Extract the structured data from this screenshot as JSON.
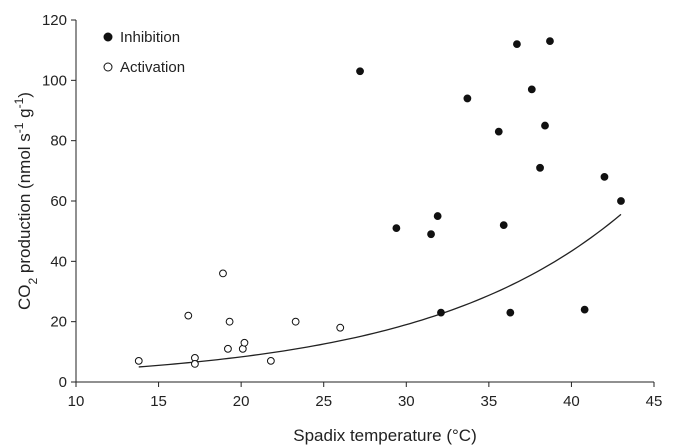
{
  "chart_data": {
    "type": "scatter",
    "xlabel": "Spadix temperature  (°C)",
    "ylabel_parts": {
      "pre": "CO",
      "sub": "2",
      "mid": " production  (nmol s",
      "sup1": "-1",
      "mid2": " g",
      "sup2": "-1",
      "post": ")"
    },
    "xlim": [
      10,
      45
    ],
    "ylim": [
      0,
      120
    ],
    "xticks": [
      10,
      15,
      20,
      25,
      30,
      35,
      40,
      45
    ],
    "yticks": [
      0,
      20,
      40,
      60,
      80,
      100,
      120
    ],
    "grid": false,
    "legend_position": "top-left",
    "series": [
      {
        "name": "Inhibition",
        "marker": "filled-circle",
        "points": [
          [
            27.2,
            103
          ],
          [
            29.4,
            51
          ],
          [
            31.5,
            49
          ],
          [
            31.9,
            55
          ],
          [
            32.1,
            23
          ],
          [
            33.7,
            94
          ],
          [
            35.6,
            83
          ],
          [
            35.9,
            52
          ],
          [
            36.3,
            23
          ],
          [
            36.7,
            112
          ],
          [
            37.6,
            97
          ],
          [
            38.1,
            71
          ],
          [
            38.4,
            85
          ],
          [
            38.7,
            113
          ],
          [
            40.8,
            24
          ],
          [
            42.0,
            68
          ],
          [
            43.0,
            60
          ]
        ]
      },
      {
        "name": "Activation",
        "marker": "open-circle",
        "points": [
          [
            13.8,
            7
          ],
          [
            16.8,
            22
          ],
          [
            17.2,
            8
          ],
          [
            17.2,
            6
          ],
          [
            18.9,
            36
          ],
          [
            19.2,
            11
          ],
          [
            19.3,
            20
          ],
          [
            20.1,
            11
          ],
          [
            20.2,
            13
          ],
          [
            21.8,
            7
          ],
          [
            23.3,
            20
          ],
          [
            26.0,
            18
          ]
        ]
      }
    ],
    "fit_curve": {
      "type": "exponential",
      "a": 1.6,
      "b": 0.0825,
      "x_range": [
        13.8,
        43.0
      ]
    }
  }
}
